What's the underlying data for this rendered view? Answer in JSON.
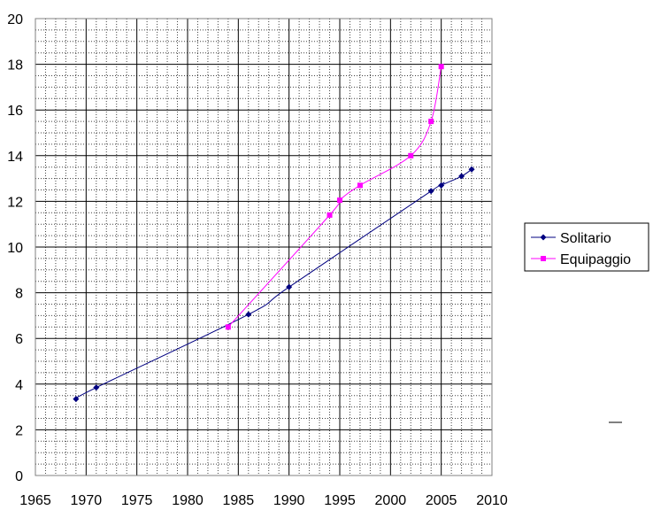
{
  "chart_data": {
    "type": "line",
    "title": "",
    "xlabel": "",
    "ylabel": "",
    "xlim": [
      1965,
      2010
    ],
    "ylim": [
      0,
      20
    ],
    "x_ticks": [
      "1965",
      "1970",
      "1975",
      "1980",
      "1985",
      "1990",
      "1995",
      "2000",
      "2005",
      "2010"
    ],
    "y_ticks": [
      "0",
      "2",
      "4",
      "6",
      "8",
      "10",
      "12",
      "14",
      "16",
      "18",
      "20"
    ],
    "grid": "major solid, minor dotted",
    "legend_position": "right",
    "series": [
      {
        "name": "Solitario",
        "color": "#000080",
        "marker": "diamond",
        "points": [
          [
            1969,
            3.35
          ],
          [
            1971,
            3.85
          ],
          [
            1986,
            7.05
          ],
          [
            1990,
            8.25
          ],
          [
            2004,
            12.45
          ],
          [
            2005,
            12.7
          ],
          [
            2007,
            13.1
          ],
          [
            2008,
            13.4
          ]
        ]
      },
      {
        "name": "Equipaggio",
        "color": "#ff00ff",
        "marker": "square",
        "points": [
          [
            1984,
            6.5
          ],
          [
            1994,
            11.4
          ],
          [
            1995,
            12.05
          ],
          [
            1997,
            12.7
          ],
          [
            2002,
            14.0
          ],
          [
            2004,
            15.5
          ],
          [
            2005,
            17.9
          ]
        ]
      }
    ]
  }
}
